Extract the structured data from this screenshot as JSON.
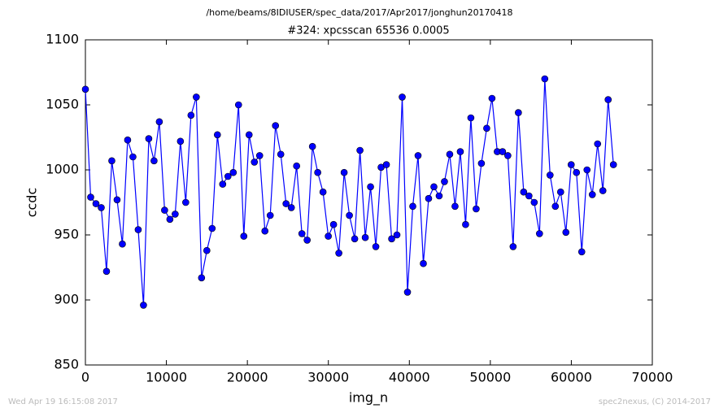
{
  "chart_data": {
    "type": "line",
    "suptitle": "/home/beams/8IDIUSER/spec_data/2017/Apr2017/jonghun20170418",
    "title": "#324: xpcsscan 65536 0.0005",
    "x_label": "img_n",
    "y_label": "ccdc",
    "footer_left": "Wed Apr 19 16:15:08 2017",
    "footer_right": "spec2nexus, (C) 2014-2017",
    "x": [
      0,
      652,
      1304,
      1956,
      2608,
      3260,
      3912,
      4564,
      5216,
      5868,
      6520,
      7172,
      7824,
      8476,
      9128,
      9780,
      10432,
      11084,
      11736,
      12388,
      13040,
      13692,
      14344,
      14996,
      15648,
      16300,
      16952,
      17604,
      18256,
      18908,
      19560,
      20212,
      20864,
      21516,
      22168,
      22820,
      23472,
      24124,
      24776,
      25428,
      26080,
      26732,
      27384,
      28036,
      28688,
      29340,
      29992,
      30644,
      31296,
      31948,
      32600,
      33252,
      33904,
      34556,
      35208,
      35860,
      36512,
      37164,
      37816,
      38468,
      39120,
      39772,
      40424,
      41076,
      41728,
      42380,
      43032,
      43684,
      44336,
      44988,
      45640,
      46292,
      46944,
      47596,
      48248,
      48900,
      49552,
      50204,
      50856,
      51508,
      52160,
      52812,
      53464,
      54116,
      54768,
      55420,
      56072,
      56724,
      57376,
      58028,
      58680,
      59332,
      59984,
      60636,
      61288,
      61940,
      62592,
      63244,
      63896,
      64548,
      65200
    ],
    "series": [
      {
        "name": "ccdc",
        "color": "#0000ff",
        "values": [
          1062,
          979,
          974,
          971,
          922,
          1007,
          977,
          943,
          1023,
          1010,
          954,
          896,
          1024,
          1007,
          1037,
          969,
          962,
          966,
          1022,
          975,
          1042,
          1056,
          917,
          938,
          955,
          1027,
          989,
          995,
          998,
          1050,
          949,
          1027,
          1006,
          1011,
          953,
          965,
          1034,
          1012,
          974,
          971,
          1003,
          951,
          946,
          1018,
          998,
          983,
          949,
          958,
          936,
          998,
          965,
          947,
          1015,
          948,
          987,
          941,
          1002,
          1004,
          947,
          950,
          1056,
          906,
          972,
          1011,
          928,
          978,
          987,
          980,
          991,
          1012,
          972,
          1014,
          958,
          1040,
          970,
          1005,
          1032,
          1055,
          1014,
          1014,
          1011,
          941,
          1044,
          983,
          980,
          975,
          951,
          1070,
          996,
          972,
          983,
          952,
          1004,
          998,
          937,
          1000,
          981,
          1020,
          984,
          1054,
          1004
        ]
      }
    ],
    "xlim": [
      0,
      70000
    ],
    "xticks": [
      0,
      10000,
      20000,
      30000,
      40000,
      50000,
      60000,
      70000
    ],
    "ylim": [
      850,
      1100
    ],
    "yticks": [
      850,
      900,
      950,
      1000,
      1050,
      1100
    ],
    "grid": false
  }
}
